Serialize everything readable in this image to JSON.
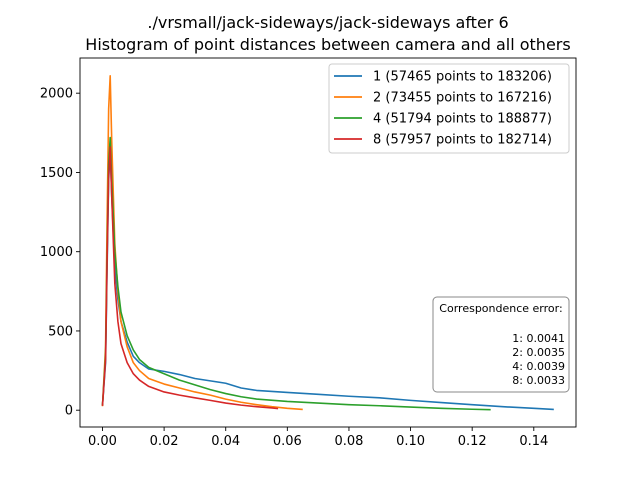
{
  "chart_data": {
    "type": "line",
    "title": "./vrsmall/jack-sideways/jack-sideways after 6",
    "subtitle": "Histogram of point distances between camera and all others",
    "xlabel": "",
    "ylabel": "",
    "xlim": [
      -0.0073,
      0.1537
    ],
    "ylim": [
      -106,
      2222
    ],
    "xticks": [
      0.0,
      0.02,
      0.04,
      0.06,
      0.08,
      0.1,
      0.12,
      0.14
    ],
    "xtick_labels": [
      "0.00",
      "0.02",
      "0.04",
      "0.06",
      "0.08",
      "0.10",
      "0.12",
      "0.14"
    ],
    "yticks": [
      0,
      500,
      1000,
      1500,
      2000
    ],
    "ytick_labels": [
      "0",
      "500",
      "1000",
      "1500",
      "2000"
    ],
    "grid": false,
    "legend_position": "top-right",
    "series": [
      {
        "name": "1 (57465 points to 183206)",
        "color": "#1f77b4",
        "points": [
          [
            0.0,
            30
          ],
          [
            0.001,
            300
          ],
          [
            0.0015,
            900
          ],
          [
            0.002,
            1450
          ],
          [
            0.0025,
            1640
          ],
          [
            0.003,
            1350
          ],
          [
            0.004,
            900
          ],
          [
            0.005,
            700
          ],
          [
            0.006,
            560
          ],
          [
            0.008,
            430
          ],
          [
            0.01,
            340
          ],
          [
            0.012,
            300
          ],
          [
            0.015,
            260
          ],
          [
            0.02,
            245
          ],
          [
            0.025,
            225
          ],
          [
            0.03,
            200
          ],
          [
            0.035,
            185
          ],
          [
            0.04,
            170
          ],
          [
            0.045,
            140
          ],
          [
            0.05,
            125
          ],
          [
            0.06,
            112
          ],
          [
            0.07,
            100
          ],
          [
            0.08,
            88
          ],
          [
            0.09,
            78
          ],
          [
            0.1,
            62
          ],
          [
            0.11,
            48
          ],
          [
            0.12,
            35
          ],
          [
            0.13,
            22
          ],
          [
            0.14,
            12
          ],
          [
            0.1465,
            5
          ]
        ]
      },
      {
        "name": "2 (73455 points to 167216)",
        "color": "#ff7f0e",
        "points": [
          [
            0.0,
            25
          ],
          [
            0.001,
            400
          ],
          [
            0.0015,
            1200
          ],
          [
            0.002,
            1900
          ],
          [
            0.0025,
            2110
          ],
          [
            0.003,
            1700
          ],
          [
            0.004,
            1050
          ],
          [
            0.005,
            750
          ],
          [
            0.006,
            560
          ],
          [
            0.008,
            400
          ],
          [
            0.01,
            300
          ],
          [
            0.012,
            250
          ],
          [
            0.015,
            200
          ],
          [
            0.02,
            165
          ],
          [
            0.025,
            140
          ],
          [
            0.03,
            115
          ],
          [
            0.035,
            95
          ],
          [
            0.04,
            70
          ],
          [
            0.045,
            50
          ],
          [
            0.05,
            35
          ],
          [
            0.055,
            22
          ],
          [
            0.06,
            12
          ],
          [
            0.065,
            5
          ]
        ]
      },
      {
        "name": "4 (51794 points to 188877)",
        "color": "#2ca02c",
        "points": [
          [
            0.0,
            30
          ],
          [
            0.001,
            350
          ],
          [
            0.0015,
            1000
          ],
          [
            0.002,
            1550
          ],
          [
            0.0025,
            1720
          ],
          [
            0.003,
            1450
          ],
          [
            0.004,
            1000
          ],
          [
            0.005,
            780
          ],
          [
            0.006,
            620
          ],
          [
            0.008,
            470
          ],
          [
            0.01,
            380
          ],
          [
            0.012,
            320
          ],
          [
            0.015,
            270
          ],
          [
            0.02,
            230
          ],
          [
            0.025,
            190
          ],
          [
            0.03,
            160
          ],
          [
            0.035,
            130
          ],
          [
            0.04,
            105
          ],
          [
            0.045,
            85
          ],
          [
            0.05,
            70
          ],
          [
            0.06,
            55
          ],
          [
            0.07,
            45
          ],
          [
            0.08,
            35
          ],
          [
            0.09,
            28
          ],
          [
            0.1,
            20
          ],
          [
            0.11,
            12
          ],
          [
            0.12,
            6
          ],
          [
            0.126,
            3
          ]
        ]
      },
      {
        "name": "8 (57957 points to 182714)",
        "color": "#d62728",
        "points": [
          [
            0.0,
            28
          ],
          [
            0.001,
            320
          ],
          [
            0.0015,
            950
          ],
          [
            0.002,
            1480
          ],
          [
            0.0025,
            1660
          ],
          [
            0.003,
            1350
          ],
          [
            0.004,
            800
          ],
          [
            0.005,
            560
          ],
          [
            0.006,
            420
          ],
          [
            0.008,
            300
          ],
          [
            0.01,
            230
          ],
          [
            0.012,
            190
          ],
          [
            0.015,
            150
          ],
          [
            0.02,
            115
          ],
          [
            0.025,
            95
          ],
          [
            0.03,
            78
          ],
          [
            0.035,
            62
          ],
          [
            0.04,
            45
          ],
          [
            0.045,
            32
          ],
          [
            0.05,
            22
          ],
          [
            0.055,
            14
          ],
          [
            0.057,
            10
          ]
        ]
      }
    ],
    "annotation": {
      "title": "Correspondence error:",
      "lines": [
        "1: 0.0041",
        "2: 0.0035",
        "4: 0.0039",
        "8: 0.0033"
      ]
    }
  }
}
